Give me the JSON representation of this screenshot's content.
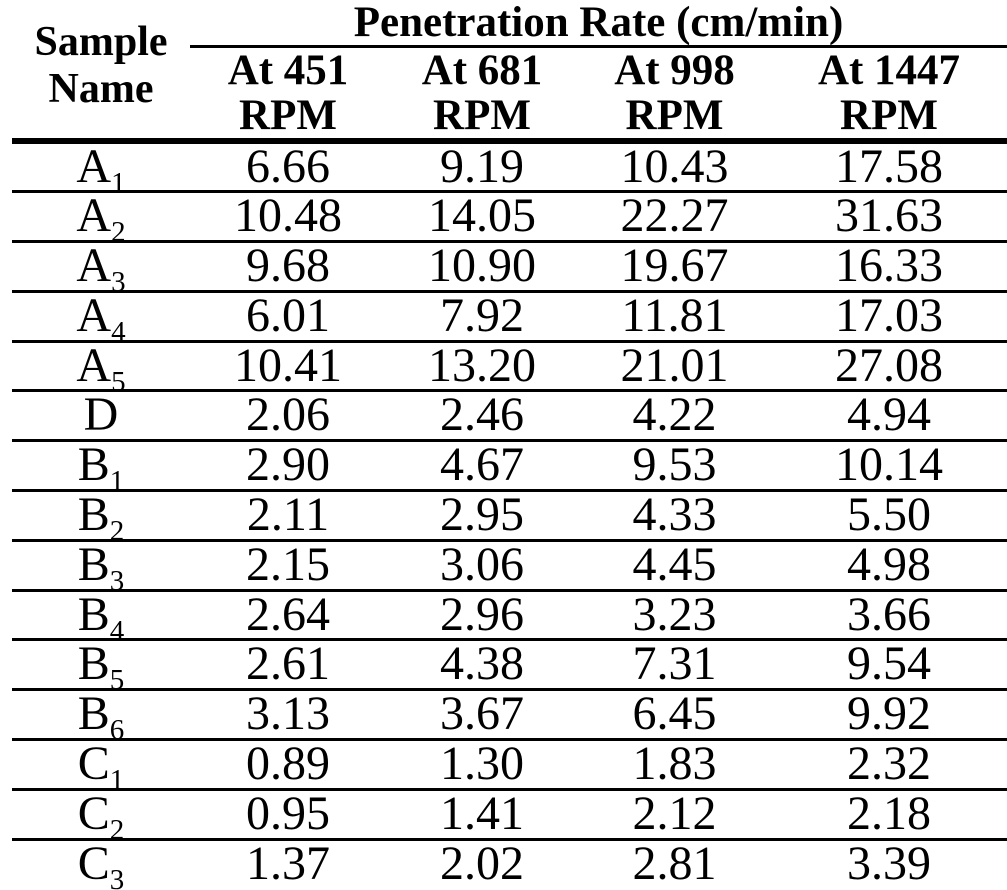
{
  "table": {
    "title": "Penetration Rate (cm/min)",
    "corner_header": "Sample Name",
    "ink_color": "#000000",
    "background_color": "#ffffff",
    "columns": [
      {
        "line1": "At 451",
        "line2": "RPM"
      },
      {
        "line1": "At 681",
        "line2": "RPM"
      },
      {
        "line1": "At 998",
        "line2": "RPM"
      },
      {
        "line1": "At 1447",
        "line2": "RPM"
      }
    ],
    "rows": [
      {
        "sample": {
          "base": "A",
          "sub": "1"
        },
        "values": [
          "6.66",
          "9.19",
          "10.43",
          "17.58"
        ]
      },
      {
        "sample": {
          "base": "A",
          "sub": "2"
        },
        "values": [
          "10.48",
          "14.05",
          "22.27",
          "31.63"
        ]
      },
      {
        "sample": {
          "base": "A",
          "sub": "3"
        },
        "values": [
          "9.68",
          "10.90",
          "19.67",
          "16.33"
        ]
      },
      {
        "sample": {
          "base": "A",
          "sub": "4"
        },
        "values": [
          "6.01",
          "7.92",
          "11.81",
          "17.03"
        ]
      },
      {
        "sample": {
          "base": "A",
          "sub": "5"
        },
        "values": [
          "10.41",
          "13.20",
          "21.01",
          "27.08"
        ]
      },
      {
        "sample": {
          "base": "D",
          "sub": ""
        },
        "values": [
          "2.06",
          "2.46",
          "4.22",
          "4.94"
        ]
      },
      {
        "sample": {
          "base": "B",
          "sub": "1"
        },
        "values": [
          "2.90",
          "4.67",
          "9.53",
          "10.14"
        ]
      },
      {
        "sample": {
          "base": "B",
          "sub": "2"
        },
        "values": [
          "2.11",
          "2.95",
          "4.33",
          "5.50"
        ]
      },
      {
        "sample": {
          "base": "B",
          "sub": "3"
        },
        "values": [
          "2.15",
          "3.06",
          "4.45",
          "4.98"
        ]
      },
      {
        "sample": {
          "base": "B",
          "sub": "4"
        },
        "values": [
          "2.64",
          "2.96",
          "3.23",
          "3.66"
        ]
      },
      {
        "sample": {
          "base": "B",
          "sub": "5"
        },
        "values": [
          "2.61",
          "4.38",
          "7.31",
          "9.54"
        ]
      },
      {
        "sample": {
          "base": "B",
          "sub": "6"
        },
        "values": [
          "3.13",
          "3.67",
          "6.45",
          "9.92"
        ]
      },
      {
        "sample": {
          "base": "C",
          "sub": "1"
        },
        "values": [
          "0.89",
          "1.30",
          "1.83",
          "2.32"
        ]
      },
      {
        "sample": {
          "base": "C",
          "sub": "2"
        },
        "values": [
          "0.95",
          "1.41",
          "2.12",
          "2.18"
        ]
      },
      {
        "sample": {
          "base": "C",
          "sub": "3"
        },
        "values": [
          "1.37",
          "2.02",
          "2.81",
          "3.39"
        ]
      }
    ]
  }
}
